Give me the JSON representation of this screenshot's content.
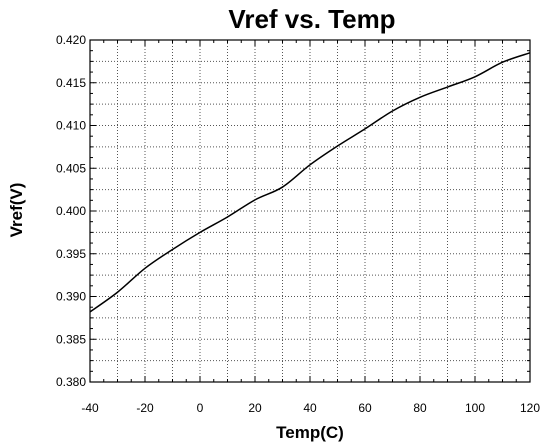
{
  "chart_data": {
    "type": "line",
    "title": "Vref vs. Temp",
    "xlabel": "Temp(C)",
    "ylabel": "Vref(V)",
    "xlim": [
      -40,
      120
    ],
    "ylim": [
      0.38,
      0.42
    ],
    "grid": true,
    "x_ticks": [
      "-40",
      "-20",
      "0",
      "20",
      "40",
      "60",
      "80",
      "100",
      "120"
    ],
    "y_ticks": [
      "0.380",
      "0.385",
      "0.390",
      "0.395",
      "0.400",
      "0.405",
      "0.410",
      "0.415",
      "0.420"
    ],
    "series": [
      {
        "name": "",
        "x": [
          -40,
          -30,
          -20,
          -10,
          0,
          10,
          20,
          30,
          40,
          50,
          60,
          70,
          80,
          90,
          100,
          110,
          120
        ],
        "y": [
          0.3882,
          0.3905,
          0.3933,
          0.3955,
          0.3975,
          0.3993,
          0.4013,
          0.4028,
          0.4054,
          0.4076,
          0.4096,
          0.4117,
          0.4133,
          0.4145,
          0.4157,
          0.4174,
          0.4185
        ]
      }
    ]
  }
}
